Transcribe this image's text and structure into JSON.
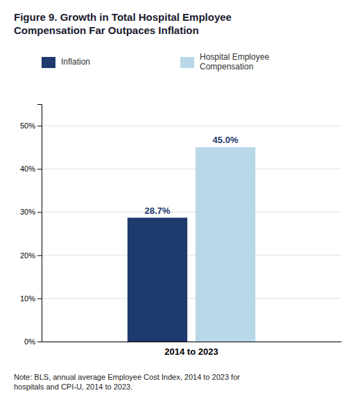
{
  "chart_data": {
    "type": "bar",
    "title": "Figure 9. Growth in Total Hospital Employee\nCompensation Far Outpaces Inflation",
    "categories": [
      "2014 to 2023"
    ],
    "series": [
      {
        "name": "Inflation",
        "color": "#1e3a6e",
        "values": [
          28.7
        ],
        "value_labels": [
          "28.7%"
        ]
      },
      {
        "name": "Hospital Employee\nCompensation",
        "color": "#b8d8ea",
        "values": [
          45.0
        ],
        "value_labels": [
          "45.0%"
        ]
      }
    ],
    "ylim": [
      0,
      55
    ],
    "yticks": [
      {
        "value": 0,
        "label": "0%"
      },
      {
        "value": 10,
        "label": "10%"
      },
      {
        "value": 20,
        "label": "20%"
      },
      {
        "value": 30,
        "label": "30%"
      },
      {
        "value": 40,
        "label": "40%"
      },
      {
        "value": 50,
        "label": "50%"
      }
    ],
    "grid": true,
    "legend": "top",
    "data_labels": true,
    "annotations": [
      "Note: BLS, annual average Employee Cost Index, 2014 to 2023 for\nhospitals and CPI-U, 2014 to 2023."
    ]
  }
}
